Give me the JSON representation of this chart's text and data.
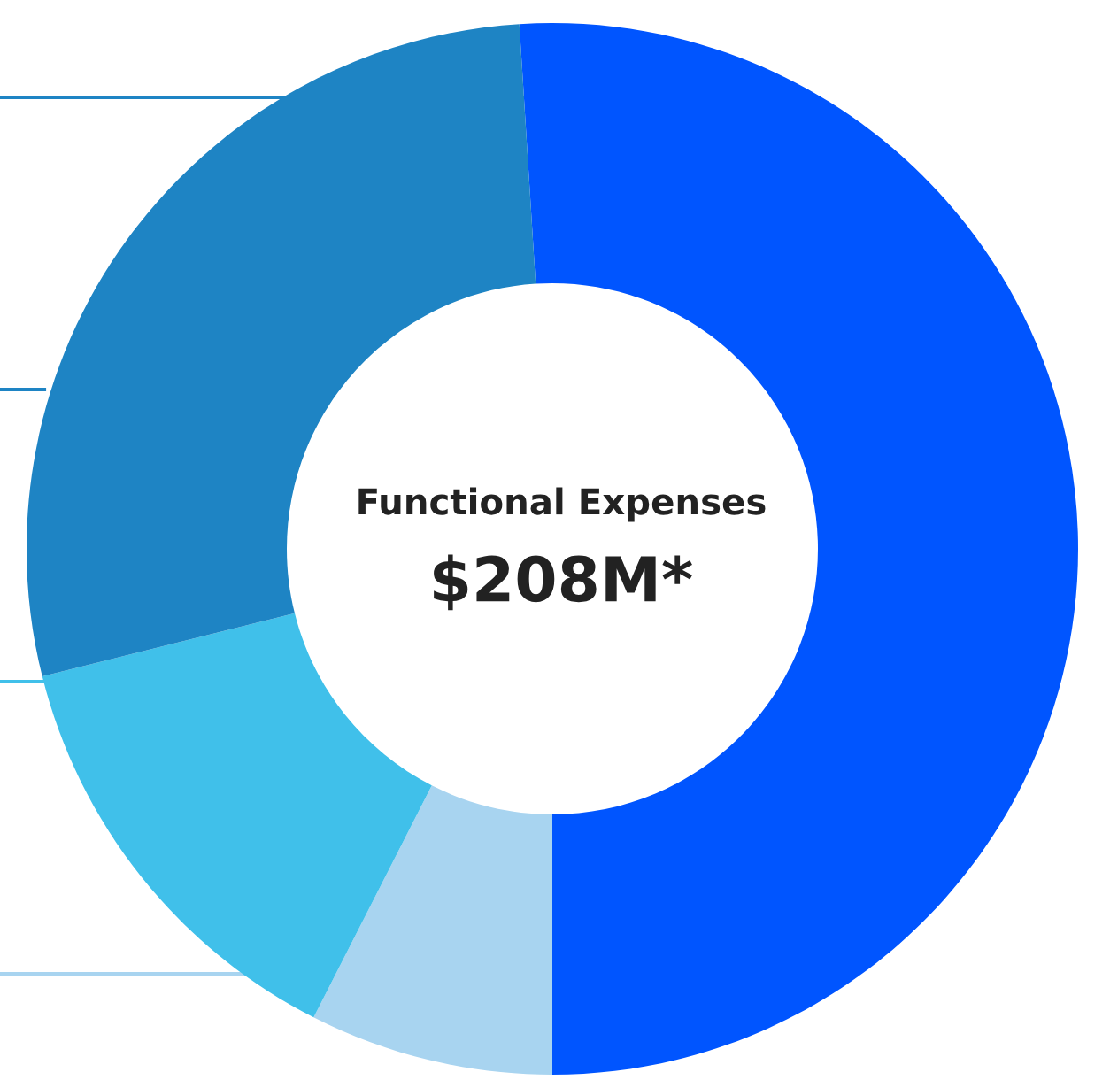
{
  "chart_data": {
    "type": "donut",
    "title": "Functional Expenses",
    "subtitle": "$208M*",
    "categories": [
      null,
      null,
      null,
      null
    ],
    "values": [
      51,
      7.5,
      13.6,
      27.9
    ],
    "colors": [
      "#0055ff",
      "#a8d4f0",
      "#40c0ea",
      "#1e84c4"
    ],
    "legend": false
  }
}
